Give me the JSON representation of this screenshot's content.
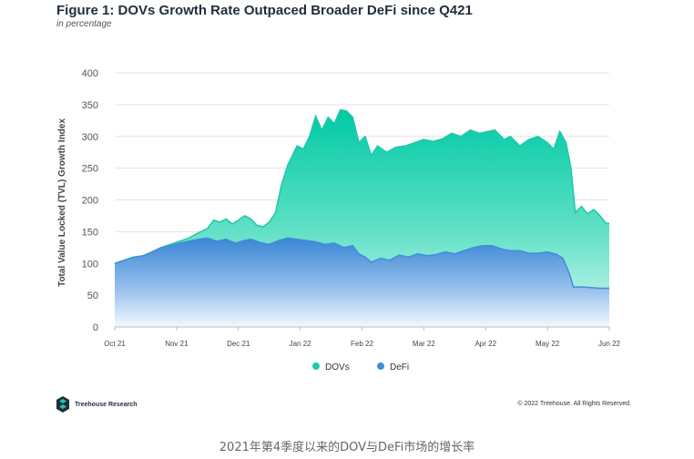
{
  "title": "Figure 1: DOVs Growth Rate Outpaced Broader DeFi since Q421",
  "subtitle": "in percentage",
  "footer": {
    "brand": "Treehouse Research",
    "copyright": "© 2022 Treehouse. All Rights Reserved.",
    "caption": "2021年第4季度以来的DOV与DeFi市场的增长率"
  },
  "colors": {
    "dovs": "#1fc9a9",
    "defi": "#3f8fd8"
  },
  "chart_data": {
    "type": "area",
    "title": "Figure 1: DOVs Growth Rate Outpaced Broader DeFi since Q421",
    "ylabel": "Total Value Locked (TVL) Growth Index",
    "xlabel": "",
    "ylim": [
      0,
      400
    ],
    "yticks": [
      0,
      50,
      100,
      150,
      200,
      250,
      300,
      350,
      400
    ],
    "xlim": [
      0,
      8
    ],
    "x_tick_labels": [
      "Oct 21",
      "Nov 21",
      "Dec 21",
      "Jan 22",
      "Feb 22",
      "Mar 22",
      "Apr 22",
      "May 22",
      "Jun 22"
    ],
    "legend": [
      "DOVs",
      "DeFi"
    ],
    "legend_position": "bottom-center",
    "series": [
      {
        "name": "DOVs",
        "points": [
          [
            0,
            100
          ],
          [
            0.15,
            105
          ],
          [
            0.3,
            110
          ],
          [
            0.45,
            110
          ],
          [
            0.6,
            118
          ],
          [
            0.75,
            125
          ],
          [
            0.9,
            130
          ],
          [
            1.05,
            135
          ],
          [
            1.2,
            140
          ],
          [
            1.35,
            148
          ],
          [
            1.5,
            155
          ],
          [
            1.6,
            168
          ],
          [
            1.7,
            165
          ],
          [
            1.8,
            170
          ],
          [
            1.9,
            162
          ],
          [
            2.0,
            168
          ],
          [
            2.1,
            175
          ],
          [
            2.2,
            170
          ],
          [
            2.3,
            160
          ],
          [
            2.4,
            158
          ],
          [
            2.5,
            165
          ],
          [
            2.6,
            180
          ],
          [
            2.7,
            225
          ],
          [
            2.8,
            255
          ],
          [
            2.95,
            285
          ],
          [
            3.05,
            280
          ],
          [
            3.15,
            300
          ],
          [
            3.25,
            332
          ],
          [
            3.35,
            310
          ],
          [
            3.45,
            330
          ],
          [
            3.55,
            320
          ],
          [
            3.65,
            342
          ],
          [
            3.75,
            340
          ],
          [
            3.85,
            330
          ],
          [
            3.95,
            290
          ],
          [
            4.05,
            300
          ],
          [
            4.15,
            270
          ],
          [
            4.25,
            285
          ],
          [
            4.4,
            275
          ],
          [
            4.55,
            283
          ],
          [
            4.7,
            285
          ],
          [
            4.85,
            290
          ],
          [
            5.0,
            295
          ],
          [
            5.15,
            292
          ],
          [
            5.3,
            296
          ],
          [
            5.45,
            305
          ],
          [
            5.6,
            300
          ],
          [
            5.75,
            310
          ],
          [
            5.9,
            305
          ],
          [
            6.05,
            308
          ],
          [
            6.15,
            310
          ],
          [
            6.3,
            295
          ],
          [
            6.4,
            300
          ],
          [
            6.55,
            285
          ],
          [
            6.7,
            295
          ],
          [
            6.85,
            300
          ],
          [
            7.0,
            290
          ],
          [
            7.1,
            280
          ],
          [
            7.2,
            308
          ],
          [
            7.3,
            290
          ],
          [
            7.38,
            250
          ],
          [
            7.45,
            180
          ],
          [
            7.55,
            190
          ],
          [
            7.65,
            178
          ],
          [
            7.75,
            185
          ],
          [
            7.85,
            175
          ],
          [
            7.95,
            163
          ],
          [
            8.0,
            163
          ]
        ]
      },
      {
        "name": "DeFi",
        "points": [
          [
            0,
            100
          ],
          [
            0.15,
            105
          ],
          [
            0.3,
            110
          ],
          [
            0.45,
            112
          ],
          [
            0.6,
            118
          ],
          [
            0.75,
            125
          ],
          [
            0.9,
            128
          ],
          [
            1.05,
            132
          ],
          [
            1.2,
            135
          ],
          [
            1.35,
            138
          ],
          [
            1.5,
            140
          ],
          [
            1.65,
            135
          ],
          [
            1.8,
            138
          ],
          [
            1.95,
            132
          ],
          [
            2.1,
            136
          ],
          [
            2.2,
            138
          ],
          [
            2.35,
            133
          ],
          [
            2.5,
            130
          ],
          [
            2.65,
            136
          ],
          [
            2.8,
            140
          ],
          [
            2.95,
            138
          ],
          [
            3.1,
            136
          ],
          [
            3.25,
            134
          ],
          [
            3.4,
            130
          ],
          [
            3.55,
            132
          ],
          [
            3.7,
            125
          ],
          [
            3.85,
            128
          ],
          [
            3.95,
            115
          ],
          [
            4.05,
            110
          ],
          [
            4.15,
            102
          ],
          [
            4.3,
            108
          ],
          [
            4.45,
            105
          ],
          [
            4.6,
            113
          ],
          [
            4.75,
            110
          ],
          [
            4.9,
            115
          ],
          [
            5.05,
            112
          ],
          [
            5.2,
            114
          ],
          [
            5.35,
            118
          ],
          [
            5.5,
            115
          ],
          [
            5.65,
            120
          ],
          [
            5.8,
            125
          ],
          [
            5.95,
            128
          ],
          [
            6.1,
            128
          ],
          [
            6.25,
            123
          ],
          [
            6.4,
            120
          ],
          [
            6.55,
            120
          ],
          [
            6.7,
            116
          ],
          [
            6.85,
            116
          ],
          [
            7.0,
            118
          ],
          [
            7.15,
            114
          ],
          [
            7.25,
            108
          ],
          [
            7.35,
            85
          ],
          [
            7.42,
            63
          ],
          [
            7.55,
            63
          ],
          [
            7.7,
            62
          ],
          [
            7.85,
            61
          ],
          [
            8.0,
            61
          ]
        ]
      }
    ]
  }
}
